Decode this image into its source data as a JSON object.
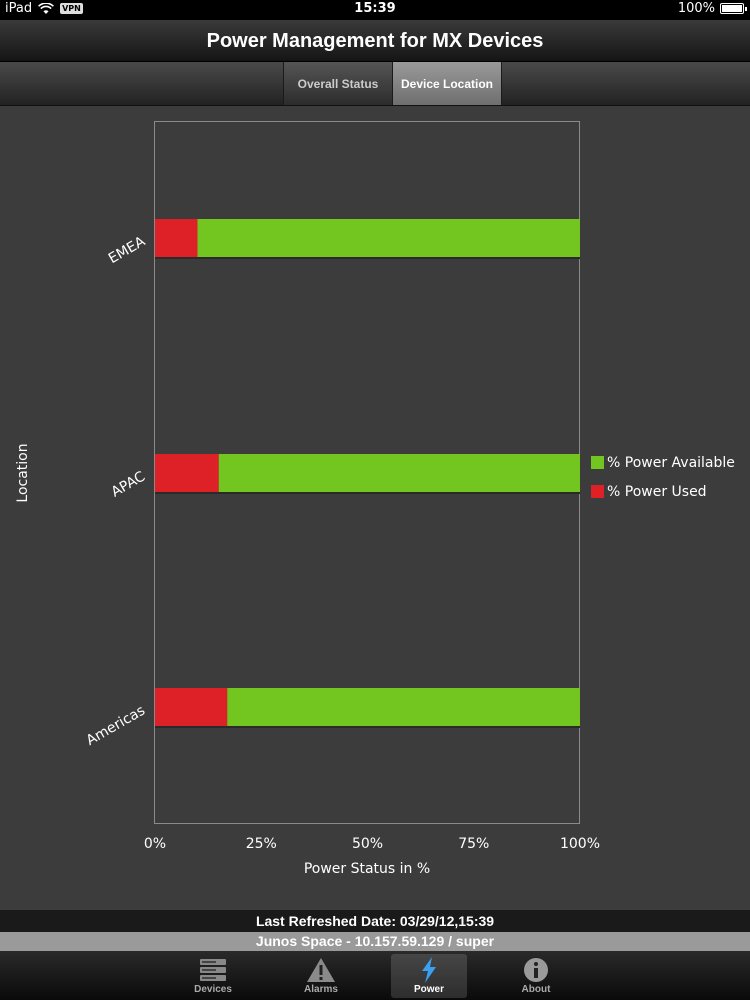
{
  "status_bar": {
    "device": "iPad",
    "vpn": "VPN",
    "time": "15:39",
    "battery": "100%"
  },
  "header": {
    "title": "Power Management for MX Devices"
  },
  "segments": [
    {
      "label": "Overall Status",
      "selected": false
    },
    {
      "label": "Device Location",
      "selected": true
    }
  ],
  "chart_data": {
    "type": "bar",
    "orientation": "horizontal",
    "stacked": true,
    "categories": [
      "EMEA",
      "APAC",
      "Americas"
    ],
    "series": [
      {
        "name": "% Power Used",
        "color": "#dd2126",
        "values": [
          10,
          15,
          17
        ]
      },
      {
        "name": "% Power Available",
        "color": "#73c620",
        "values": [
          90,
          85,
          83
        ]
      }
    ],
    "xlabel": "Power Status in %",
    "ylabel": "Location",
    "xlim": [
      0,
      100
    ],
    "x_ticks": [
      "0%",
      "25%",
      "50%",
      "75%",
      "100%"
    ],
    "legend_position": "right",
    "grid": false
  },
  "footer": {
    "last_refreshed": "Last Refreshed Date: 03/29/12,15:39",
    "server": "Junos Space - 10.157.59.129 / super"
  },
  "tabs": [
    {
      "label": "Devices",
      "icon": "server-icon",
      "active": false
    },
    {
      "label": "Alarms",
      "icon": "warning-icon",
      "active": false
    },
    {
      "label": "Power",
      "icon": "lightning-icon",
      "active": true
    },
    {
      "label": "About",
      "icon": "info-icon",
      "active": false
    }
  ]
}
